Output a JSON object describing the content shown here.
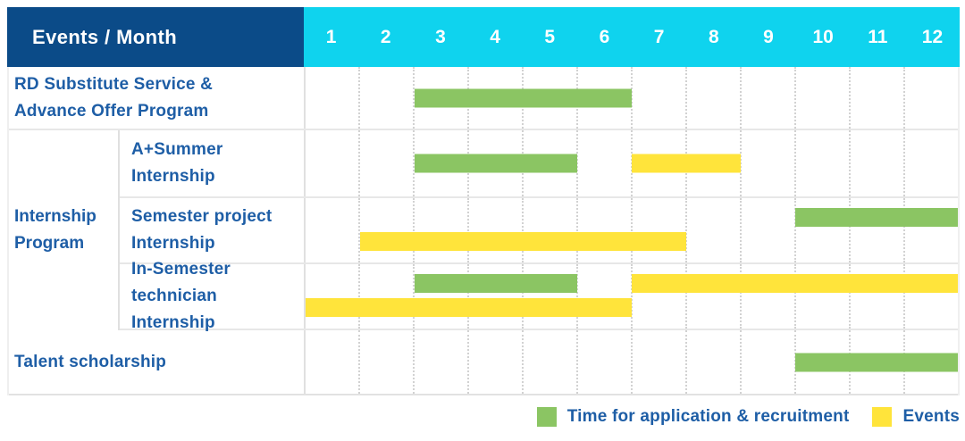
{
  "colors": {
    "navy": "#0b4b88",
    "cyan": "#0fd3ee",
    "green": "#8bc563",
    "yellow": "#ffe43b",
    "text_blue": "#1e5ea6"
  },
  "table": {
    "corner_title": "Events / Month",
    "months": [
      "1",
      "2",
      "3",
      "4",
      "5",
      "6",
      "7",
      "8",
      "9",
      "10",
      "11",
      "12"
    ],
    "group_label": "Internship\nProgram",
    "rows": [
      {
        "label": "RD Substitute Service &\nAdvance Offer Program"
      },
      {
        "label": "A+Summer\nInternship"
      },
      {
        "label": "Semester project\nInternship"
      },
      {
        "label": "In-Semester\ntechnician Internship"
      },
      {
        "label": "Talent scholarship"
      }
    ]
  },
  "legend": {
    "items": [
      {
        "label": "Time for application & recruitment",
        "color": "#8bc563"
      },
      {
        "label": "Events",
        "color": "#ffe43b"
      }
    ]
  },
  "chart_data": {
    "type": "bar",
    "subtype": "gantt-schedule",
    "title": "Events / Month",
    "x_axis": {
      "label": "Month",
      "ticks": [
        1,
        2,
        3,
        4,
        5,
        6,
        7,
        8,
        9,
        10,
        11,
        12
      ],
      "range": [
        1,
        12
      ]
    },
    "legend_position": "bottom-right",
    "grid": true,
    "legend": [
      {
        "name": "Time for application & recruitment",
        "color": "#8bc563"
      },
      {
        "name": "Events",
        "color": "#ffe43b"
      }
    ],
    "rows": [
      {
        "label": "RD Substitute Service & Advance Offer Program",
        "group": null,
        "bars": [
          {
            "series": "Time for application & recruitment",
            "start_month": 3,
            "end_month": 6,
            "lane": "single"
          }
        ]
      },
      {
        "label": "A+Summer Internship",
        "group": "Internship Program",
        "bars": [
          {
            "series": "Time for application & recruitment",
            "start_month": 3,
            "end_month": 5,
            "lane": "single"
          },
          {
            "series": "Events",
            "start_month": 7,
            "end_month": 8,
            "lane": "single"
          }
        ]
      },
      {
        "label": "Semester project Internship",
        "group": "Internship Program",
        "bars": [
          {
            "series": "Time for application & recruitment",
            "start_month": 10,
            "end_month": 12,
            "lane": "top"
          },
          {
            "series": "Events",
            "start_month": 2,
            "end_month": 7,
            "lane": "bottom"
          }
        ]
      },
      {
        "label": "In-Semester technician Internship",
        "group": "Internship Program",
        "bars": [
          {
            "series": "Time for application & recruitment",
            "start_month": 3,
            "end_month": 5,
            "lane": "top"
          },
          {
            "series": "Events",
            "start_month": 7,
            "end_month": 12,
            "lane": "top"
          },
          {
            "series": "Events",
            "start_month": 1,
            "end_month": 6,
            "lane": "bottom"
          }
        ]
      },
      {
        "label": "Talent scholarship",
        "group": null,
        "bars": [
          {
            "series": "Time for application & recruitment",
            "start_month": 10,
            "end_month": 12,
            "lane": "single"
          }
        ]
      }
    ]
  }
}
